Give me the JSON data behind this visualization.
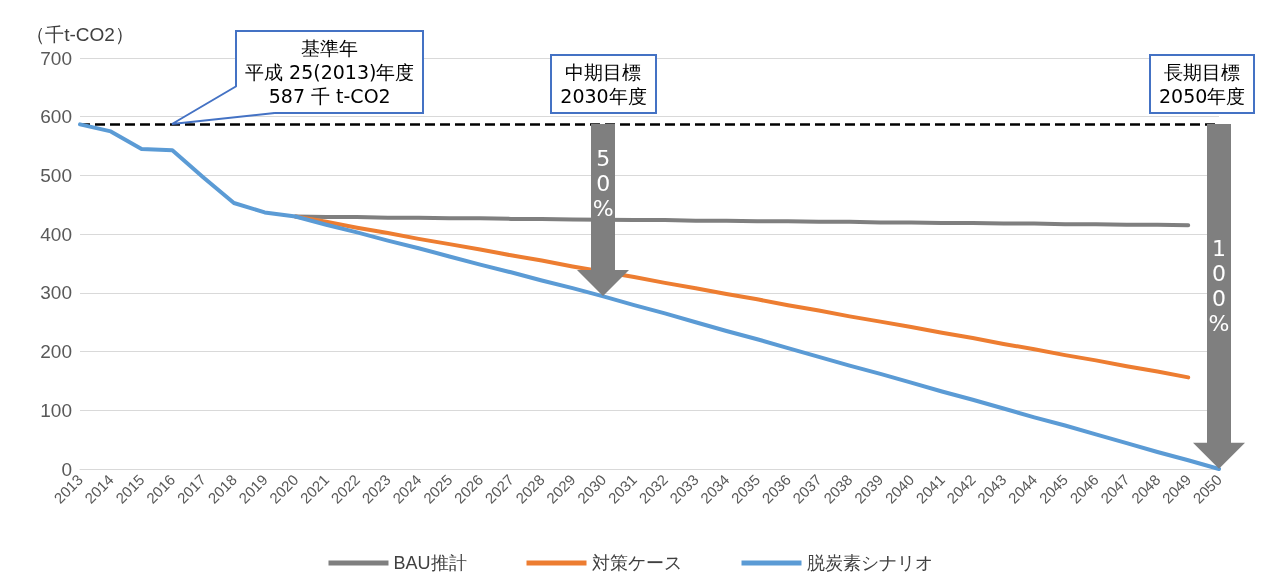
{
  "chart_data": {
    "type": "line",
    "ylabel": "（千t-CO2）",
    "categories": [
      "2013",
      "2014",
      "2015",
      "2016",
      "2017",
      "2018",
      "2019",
      "2020",
      "2021",
      "2022",
      "2023",
      "2024",
      "2025",
      "2026",
      "2027",
      "2028",
      "2029",
      "2030",
      "2031",
      "2032",
      "2033",
      "2034",
      "2035",
      "2036",
      "2037",
      "2038",
      "2039",
      "2040",
      "2041",
      "2042",
      "2043",
      "2044",
      "2045",
      "2046",
      "2047",
      "2048",
      "2049",
      "2050"
    ],
    "series": [
      {
        "name": "BAU推計",
        "color": "#7f7f7f",
        "values": [
          null,
          null,
          null,
          null,
          null,
          null,
          null,
          430,
          429,
          429,
          428,
          428,
          427,
          427,
          426,
          426,
          425,
          null,
          424,
          424,
          423,
          423,
          422,
          422,
          421,
          421,
          420,
          420,
          419,
          419,
          418,
          418,
          417,
          417,
          416,
          416,
          415,
          null
        ]
      },
      {
        "name": "対策ケース",
        "color": "#ed7d31",
        "values": [
          null,
          null,
          null,
          null,
          null,
          null,
          null,
          430,
          421,
          411,
          402,
          392,
          383,
          374,
          364,
          355,
          345,
          null,
          327,
          317,
          308,
          298,
          289,
          279,
          270,
          260,
          251,
          242,
          232,
          223,
          213,
          204,
          194,
          185,
          175,
          166,
          156,
          null
        ]
      },
      {
        "name": "脱炭素シナリオ",
        "color": "#5b9bd5",
        "values": [
          587,
          575,
          545,
          543,
          497,
          453,
          437,
          430,
          416,
          403,
          389,
          376,
          362,
          348,
          335,
          321,
          308,
          294,
          279,
          265,
          250,
          235,
          221,
          206,
          191,
          176,
          162,
          147,
          132,
          118,
          103,
          88,
          74,
          59,
          44,
          29,
          15,
          0
        ]
      }
    ],
    "ylim": [
      0,
      700
    ],
    "yticks": [
      0,
      100,
      200,
      300,
      400,
      500,
      600,
      700
    ],
    "grid": "y",
    "legend": "bottom",
    "marker": "none",
    "line_style": "solid",
    "ref_lines": [
      {
        "axis": "y",
        "value": 587,
        "color": "#000000",
        "line_style": "dashed"
      }
    ],
    "annotations": [
      "基準年",
      {
        "text": "平成 25(2013)年度\n587 千 t-CO2",
        "x": "2016",
        "y": 587
      },
      {
        "text": "中期目標\n2030年度",
        "x": "2030",
        "y": 587
      },
      "50%",
      {
        "text": "長期目標\n2050年度",
        "x": "2050",
        "y": 587
      },
      "100%"
    ]
  }
}
